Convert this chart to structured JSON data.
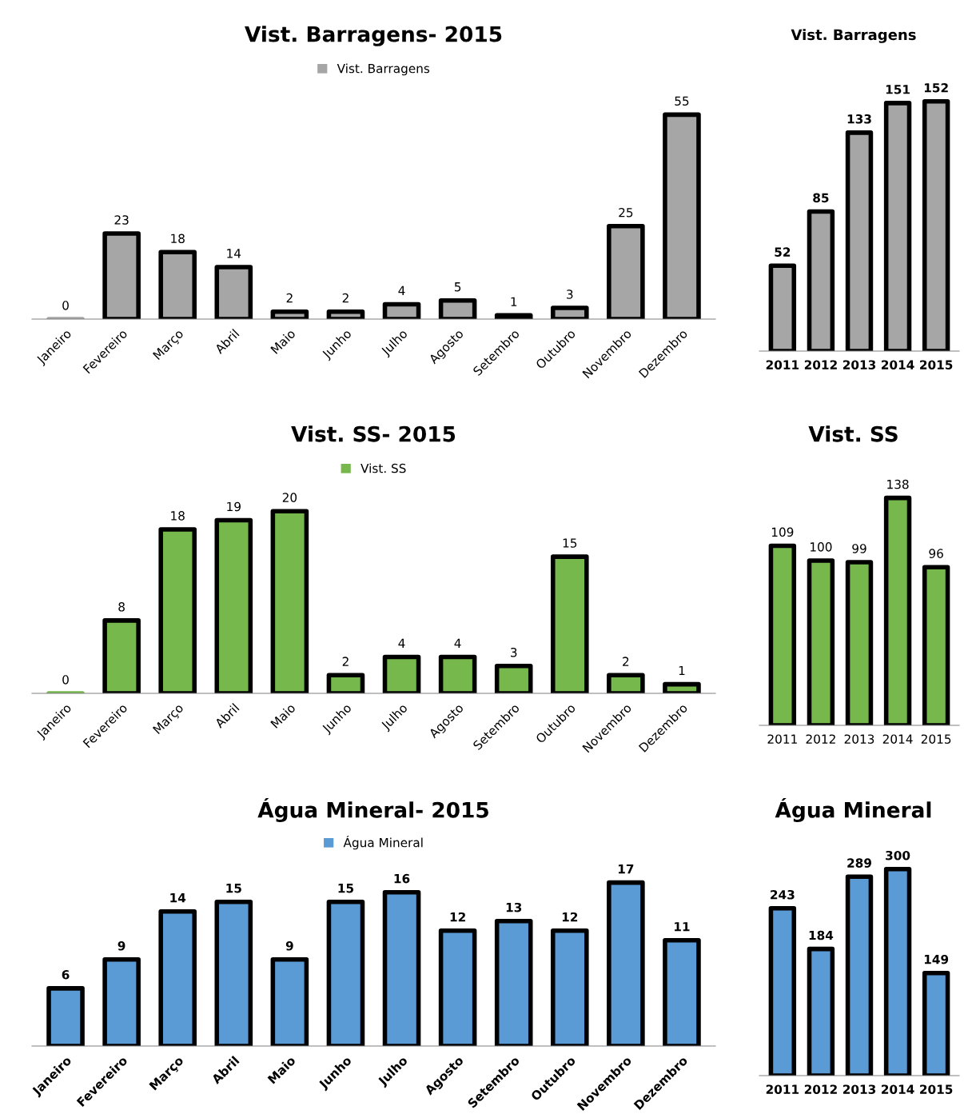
{
  "chart_data": [
    {
      "type": "bar",
      "title": "Vist. Barragens- 2015",
      "categories": [
        "Janeiro",
        "Fevereiro",
        "Março",
        "Abril",
        "Maio",
        "Junho",
        "Julho",
        "Agosto",
        "Setembro",
        "Outubro",
        "Novembro",
        "Dezembro"
      ],
      "series": [
        {
          "name": "Vist. Barragens",
          "color": "#a6a6a6",
          "values": [
            0,
            23,
            18,
            14,
            2,
            2,
            4,
            5,
            1,
            3,
            25,
            55
          ]
        }
      ],
      "legend": "top",
      "data_labels": true
    },
    {
      "type": "bar",
      "title": "Vist. Barragens",
      "categories": [
        "2011",
        "2012",
        "2013",
        "2014",
        "2015"
      ],
      "series": [
        {
          "color": "#a6a6a6",
          "values": [
            52,
            85,
            133,
            151,
            152
          ]
        }
      ],
      "data_labels": true
    },
    {
      "type": "bar",
      "title": "Vist. SS- 2015",
      "categories": [
        "Janeiro",
        "Fevereiro",
        "Março",
        "Abril",
        "Maio",
        "Junho",
        "Julho",
        "Agosto",
        "Setembro",
        "Outubro",
        "Novembro",
        "Dezembro"
      ],
      "series": [
        {
          "name": "Vist. SS",
          "color": "#77b84c",
          "values": [
            0,
            8,
            18,
            19,
            20,
            2,
            4,
            4,
            3,
            15,
            2,
            1
          ]
        }
      ],
      "legend": "top",
      "data_labels": true
    },
    {
      "type": "bar",
      "title": "Vist. SS",
      "categories": [
        "2011",
        "2012",
        "2013",
        "2014",
        "2015"
      ],
      "series": [
        {
          "color": "#77b84c",
          "values": [
            109,
            100,
            99,
            138,
            96
          ]
        }
      ],
      "data_labels": true
    },
    {
      "type": "bar",
      "title": "Água Mineral- 2015",
      "categories": [
        "Janeiro",
        "Fevereiro",
        "Março",
        "Abril",
        "Maio",
        "Junho",
        "Julho",
        "Agosto",
        "Setembro",
        "Outubro",
        "Novembro",
        "Dezembro"
      ],
      "series": [
        {
          "name": "Água Mineral",
          "color": "#5b9bd5",
          "values": [
            6,
            9,
            14,
            15,
            9,
            15,
            16,
            12,
            13,
            12,
            17,
            11
          ]
        }
      ],
      "legend": "top",
      "data_labels": true
    },
    {
      "type": "bar",
      "title": "Água Mineral",
      "categories": [
        "2011",
        "2012",
        "2013",
        "2014",
        "2015"
      ],
      "series": [
        {
          "color": "#5b9bd5",
          "values": [
            243,
            184,
            289,
            300,
            149
          ]
        }
      ],
      "data_labels": true
    }
  ]
}
